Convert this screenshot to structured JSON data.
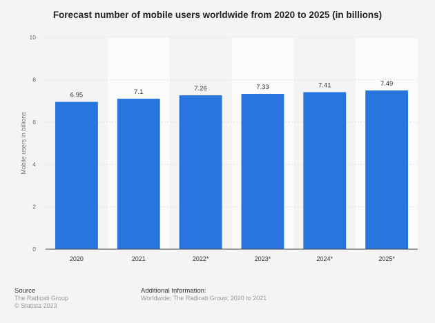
{
  "chart_data": {
    "type": "bar",
    "title": "Forecast number of mobile users worldwide from 2020 to 2025 (in billions)",
    "xlabel": "",
    "ylabel": "Mobile users in billions",
    "categories": [
      "2020",
      "2021",
      "2022*",
      "2023*",
      "2024*",
      "2025*"
    ],
    "values": [
      6.95,
      7.1,
      7.26,
      7.33,
      7.41,
      7.49
    ],
    "data_labels": [
      "6.95",
      "7.1",
      "7.26",
      "7.33",
      "7.41",
      "7.49"
    ],
    "ylim": [
      0,
      10
    ],
    "yticks": [
      0,
      2,
      4,
      6,
      8,
      10
    ],
    "grid": true,
    "bar_color": "#2876dd"
  },
  "footer": {
    "source_heading": "Source",
    "source": "The Radicati Group",
    "copyright": "© Statista 2023",
    "info_heading": "Additional Information:",
    "info": "Worldwide; The Radicati Group; 2020 to 2021"
  }
}
